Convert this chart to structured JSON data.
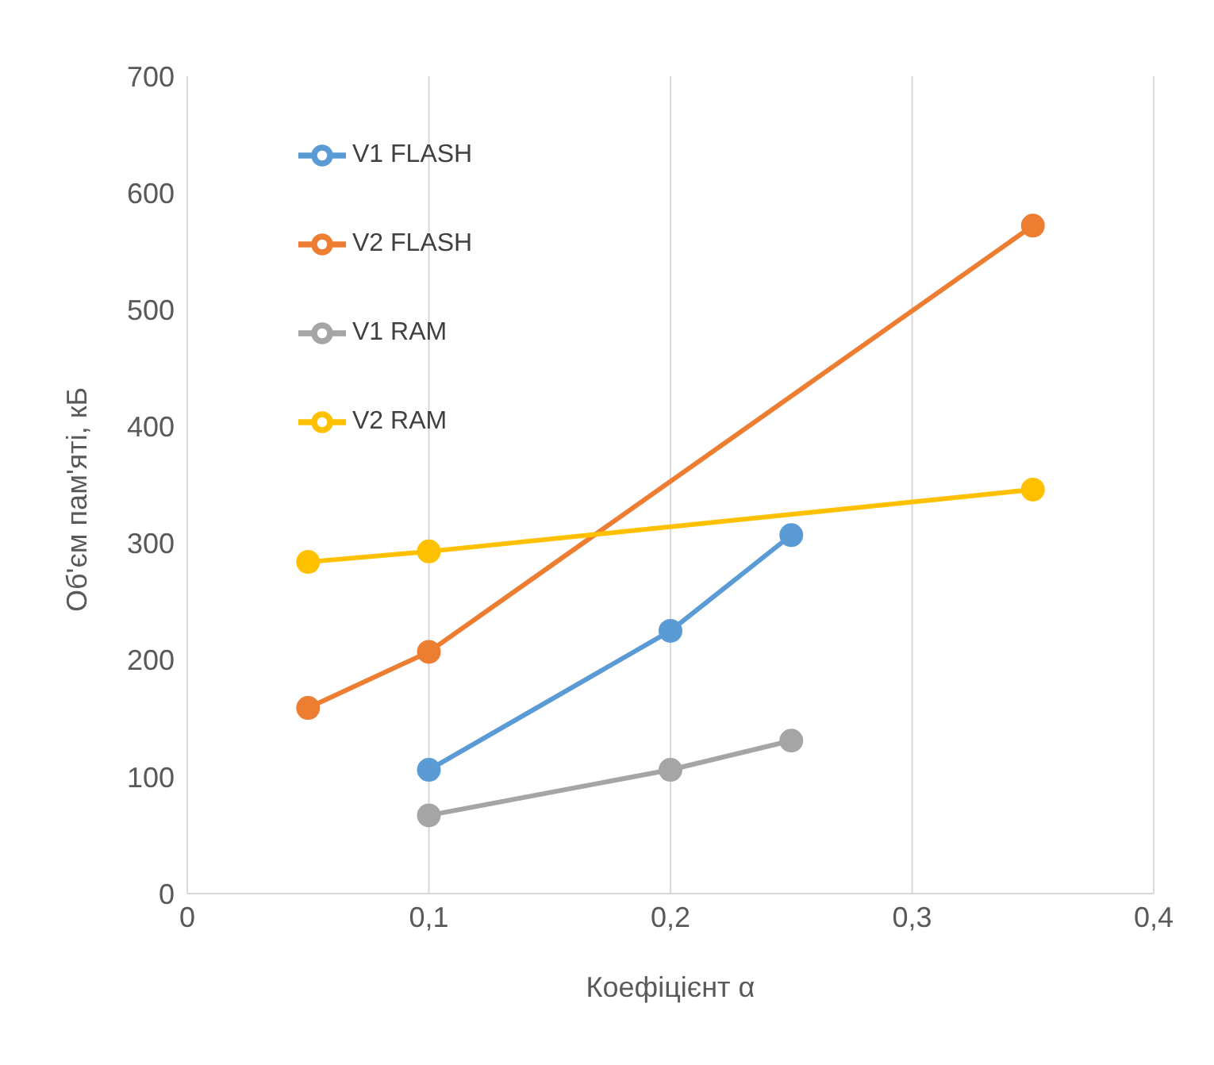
{
  "chart_data": {
    "type": "line",
    "xlabel": "Коефіцієнт α",
    "ylabel": "Об'єм пам'яті, кБ",
    "xlim": [
      0,
      0.4
    ],
    "xticks": [
      0,
      {
        "value": 0.1,
        "label": "0,1"
      },
      {
        "value": 0.2,
        "label": "0,2"
      },
      {
        "value": 0.3,
        "label": "0,3"
      },
      {
        "value": 0.4,
        "label": "0,4"
      }
    ],
    "ylim": [
      0,
      700
    ],
    "yticks": [
      0,
      100,
      200,
      300,
      400,
      500,
      600,
      700
    ],
    "grid": "x",
    "legend": "top left",
    "marker": "circle",
    "line_style": "solid",
    "series": [
      {
        "name": "V1 FLASH",
        "color": "#5b9bd5",
        "x": [
          0.1,
          0.2,
          0.25
        ],
        "values": [
          106,
          225,
          307
        ]
      },
      {
        "name": "V2 FLASH",
        "color": "#ed7d31",
        "x": [
          0.05,
          0.1,
          0.35
        ],
        "values": [
          159,
          207,
          572
        ]
      },
      {
        "name": "V1 RAM",
        "color": "#a5a5a5",
        "x": [
          0.1,
          0.2,
          0.25
        ],
        "values": [
          67,
          106,
          131
        ]
      },
      {
        "name": "V2 RAM",
        "color": "#ffc000",
        "x": [
          0.05,
          0.1,
          0.35
        ],
        "values": [
          284,
          293,
          346
        ]
      }
    ]
  }
}
